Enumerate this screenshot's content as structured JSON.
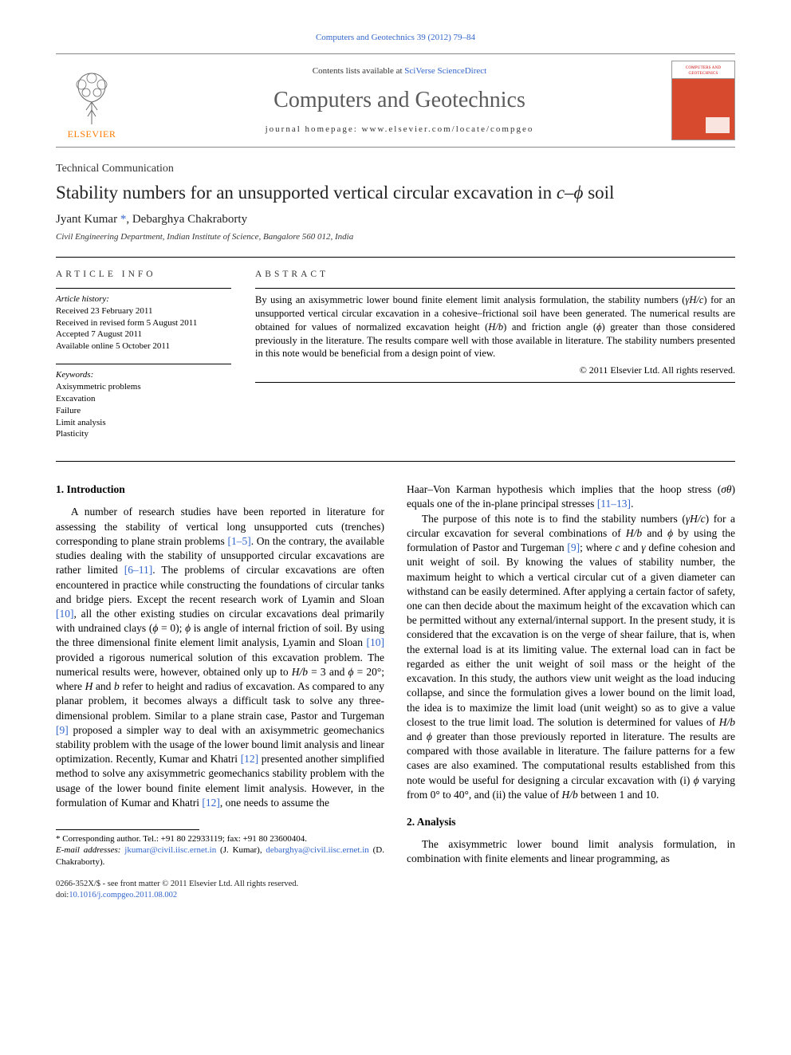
{
  "colors": {
    "link": "#3366cc",
    "elsevier_orange": "#ff7b00",
    "cover_red": "#d84a2e",
    "title_gray": "#5b5b5b",
    "text": "#000000",
    "background": "#ffffff"
  },
  "top_link": "Computers and Geotechnics 39 (2012) 79–84",
  "header": {
    "contents_prefix": "Contents lists available at ",
    "contents_link": "SciVerse ScienceDirect",
    "journal_name": "Computers and Geotechnics",
    "homepage_label": "journal homepage: ",
    "homepage_url": "www.elsevier.com/locate/compgeo",
    "elsevier_word": "ELSEVIER",
    "cover_text": "COMPUTERS AND GEOTECHNICS"
  },
  "article": {
    "type": "Technical Communication",
    "title_pre": "Stability numbers for an unsupported vertical circular excavation in ",
    "title_var": "c–ϕ",
    "title_post": " soil",
    "authors_html": "Jyant Kumar ",
    "author_link": "*",
    "authors_post": ", Debarghya Chakraborty",
    "affiliation": "Civil Engineering Department, Indian Institute of Science, Bangalore 560 012, India"
  },
  "info": {
    "heading": "article info",
    "history_label": "Article history:",
    "history": [
      "Received 23 February 2011",
      "Received in revised form 5 August 2011",
      "Accepted 7 August 2011",
      "Available online 5 October 2011"
    ],
    "keywords_label": "Keywords:",
    "keywords": [
      "Axisymmetric problems",
      "Excavation",
      "Failure",
      "Limit analysis",
      "Plasticity"
    ]
  },
  "abstract": {
    "heading": "abstract",
    "text": "By using an axisymmetric lower bound finite element limit analysis formulation, the stability numbers (γH/c) for an unsupported vertical circular excavation in a cohesive–frictional soil have been generated. The numerical results are obtained for values of normalized excavation height (H/b) and friction angle (ϕ) greater than those considered previously in the literature. The results compare well with those available in literature. The stability numbers presented in this note would be beneficial from a design point of view.",
    "copyright": "© 2011 Elsevier Ltd. All rights reserved."
  },
  "sections": {
    "s1_title": "1. Introduction",
    "s1_p1": "A number of research studies have been reported in literature for assessing the stability of vertical long unsupported cuts (trenches) corresponding to plane strain problems [1–5]. On the contrary, the available studies dealing with the stability of unsupported circular excavations are rather limited [6–11]. The problems of circular excavations are often encountered in practice while constructing the foundations of circular tanks and bridge piers. Except the recent research work of Lyamin and Sloan [10], all the other existing studies on circular excavations deal primarily with undrained clays (ϕ = 0); ϕ is angle of internal friction of soil. By using the three dimensional finite element limit analysis, Lyamin and Sloan [10] provided a rigorous numerical solution of this excavation problem. The numerical results were, however, obtained only up to H/b = 3 and ϕ = 20°; where H and b refer to height and radius of excavation. As compared to any planar problem, it becomes always a difficult task to solve any three-dimensional problem. Similar to a plane strain case, Pastor and Turgeman [9] proposed a simpler way to deal with an axisymmetric geomechanics stability problem with the usage of the lower bound limit analysis and linear optimization. Recently, Kumar and Khatri [12] presented another simplified method to solve any axisymmetric geomechanics stability problem with the usage of the lower bound finite element limit analysis. However, in the formulation of Kumar and Khatri [12], one needs to assume the",
    "s1_p2": "Haar–Von Karman hypothesis which implies that the hoop stress (σθ) equals one of the in-plane principal stresses [11–13].",
    "s1_p3": "The purpose of this note is to find the stability numbers (γH/c) for a circular excavation for several combinations of H/b and ϕ by using the formulation of Pastor and Turgeman [9]; where c and γ define cohesion and unit weight of soil. By knowing the values of stability number, the maximum height to which a vertical circular cut of a given diameter can withstand can be easily determined. After applying a certain factor of safety, one can then decide about the maximum height of the excavation which can be permitted without any external/internal support. In the present study, it is considered that the excavation is on the verge of shear failure, that is, when the external load is at its limiting value. The external load can in fact be regarded as either the unit weight of soil mass or the height of the excavation. In this study, the authors view unit weight as the load inducing collapse, and since the formulation gives a lower bound on the limit load, the idea is to maximize the limit load (unit weight) so as to give a value closest to the true limit load. The solution is determined for values of H/b and ϕ greater than those previously reported in literature. The results are compared with those available in literature. The failure patterns for a few cases are also examined. The computational results established from this note would be useful for designing a circular excavation with (i) ϕ varying from 0° to 40°, and (ii) the value of H/b between 1 and 10.",
    "s2_title": "2. Analysis",
    "s2_p1": "The axisymmetric lower bound limit analysis formulation, in combination with finite elements and linear programming, as"
  },
  "footnote": {
    "corr": "* Corresponding author. Tel.: +91 80 22933119; fax: +91 80 23600404.",
    "email_label": "E-mail addresses: ",
    "email1": "jkumar@civil.iisc.ernet.in",
    "email1_who": " (J. Kumar), ",
    "email2": "debarghya@civil.iisc.ernet.in",
    "email2_who": " (D. Chakraborty)."
  },
  "doi": {
    "line1": "0266-352X/$ - see front matter © 2011 Elsevier Ltd. All rights reserved.",
    "line2": "doi:10.1016/j.compgeo.2011.08.002"
  }
}
